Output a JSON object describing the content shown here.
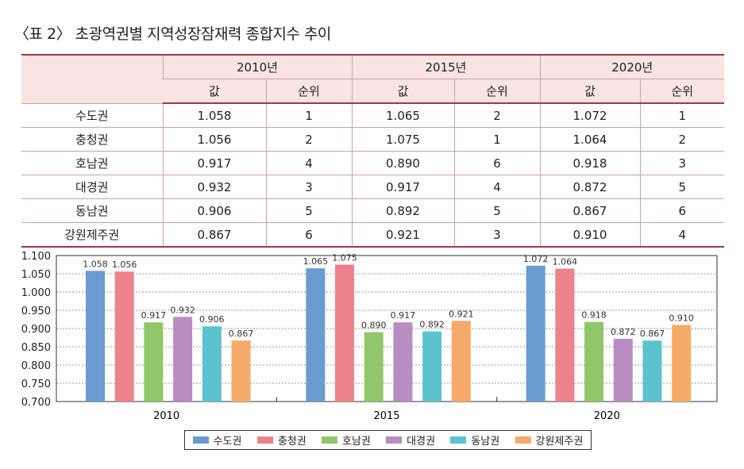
{
  "title": "〈표 2〉 초광역권별 지역성장잠재력 종합지수 추이",
  "table": {
    "years": [
      "2010년",
      "2015년",
      "2020년"
    ],
    "sub": [
      "값",
      "순위"
    ],
    "rows": [
      [
        "수도권",
        "1.058",
        "1",
        "1.065",
        "2",
        "1.072",
        "1"
      ],
      [
        "충청권",
        "1.056",
        "2",
        "1.075",
        "1",
        "1.064",
        "2"
      ],
      [
        "호남권",
        "0.917",
        "4",
        "0.890",
        "6",
        "0.918",
        "3"
      ],
      [
        "대경권",
        "0.932",
        "3",
        "0.917",
        "4",
        "0.872",
        "5"
      ],
      [
        "동남권",
        "0.906",
        "5",
        "0.892",
        "5",
        "0.867",
        "6"
      ],
      [
        "강원제주권",
        "0.867",
        "6",
        "0.921",
        "3",
        "0.910",
        "4"
      ]
    ]
  },
  "chart_data": {
    "type": "bar",
    "categories": [
      "2010",
      "2015",
      "2020"
    ],
    "ylim": [
      0.7,
      1.1
    ],
    "yticks": [
      "1.100",
      "1.050",
      "1.000",
      "0.950",
      "0.900",
      "0.850",
      "0.800",
      "0.750",
      "0.700"
    ],
    "legend_position": "bottom",
    "series": [
      {
        "name": "수도권",
        "color": "#6a9bd1",
        "values": [
          1.058,
          1.065,
          1.072
        ],
        "labels": [
          "1.058",
          "1.065",
          "1.072"
        ]
      },
      {
        "name": "충청권",
        "color": "#ec828a",
        "values": [
          1.056,
          1.075,
          1.064
        ],
        "labels": [
          "1.056",
          "1.075",
          "1.064"
        ]
      },
      {
        "name": "호남권",
        "color": "#8fc76a",
        "values": [
          0.917,
          0.89,
          0.918
        ],
        "labels": [
          "0.917",
          "0.890",
          "0.918"
        ]
      },
      {
        "name": "대경권",
        "color": "#b98cc2",
        "values": [
          0.932,
          0.917,
          0.872
        ],
        "labels": [
          "0.932",
          "0.917",
          "0.872"
        ]
      },
      {
        "name": "동남권",
        "color": "#5bc3cf",
        "values": [
          0.906,
          0.892,
          0.867
        ],
        "labels": [
          "0.906",
          "0.892",
          "0.867"
        ]
      },
      {
        "name": "강원제주권",
        "color": "#f6aa6a",
        "values": [
          0.867,
          0.921,
          0.91
        ],
        "labels": [
          "0.867",
          "0.921",
          "0.910"
        ]
      }
    ]
  }
}
